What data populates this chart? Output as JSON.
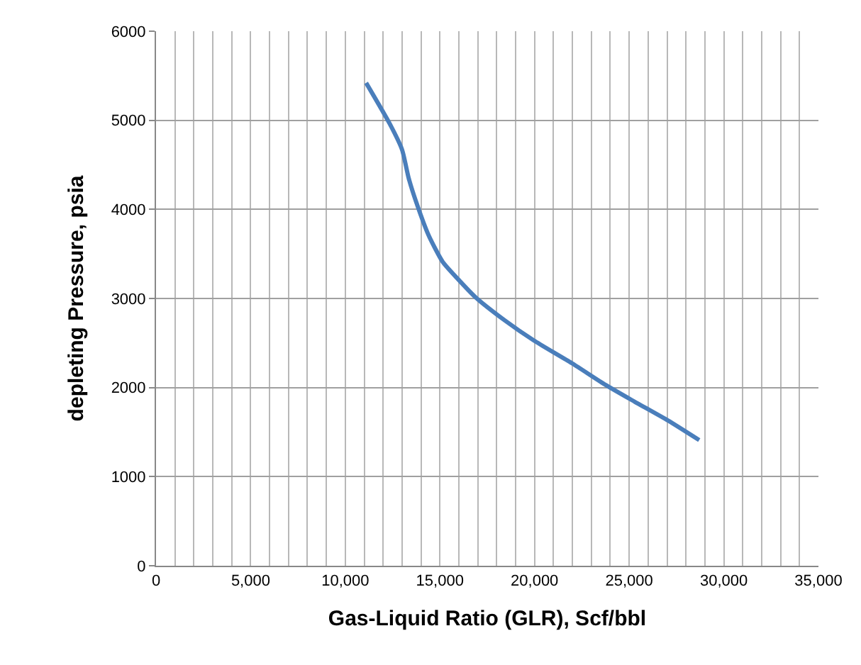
{
  "chart_data": {
    "type": "line",
    "xlabel": "Gas-Liquid Ratio (GLR), Scf/bbl",
    "ylabel": "depleting Pressure, psia",
    "series": [
      {
        "color": "#4a7ebb",
        "x": [
          11100,
          12350,
          13000,
          13350,
          13750,
          14400,
          15150,
          15900,
          16900,
          18450,
          19950,
          22000,
          23750,
          25300,
          27050,
          28700
        ],
        "values": [
          5420,
          4960,
          4670,
          4350,
          4080,
          3710,
          3410,
          3230,
          3010,
          2750,
          2530,
          2270,
          2030,
          1840,
          1630,
          1410
        ]
      }
    ],
    "xlim": [
      0,
      35000
    ],
    "ylim": [
      0,
      6000
    ],
    "xticks": [
      {
        "value": 0,
        "label": "0"
      },
      {
        "value": 1000,
        "label": null
      },
      {
        "value": 2000,
        "label": null
      },
      {
        "value": 3000,
        "label": null
      },
      {
        "value": 4000,
        "label": null
      },
      {
        "value": 5000,
        "label": "5,000"
      },
      {
        "value": 6000,
        "label": null
      },
      {
        "value": 7000,
        "label": null
      },
      {
        "value": 8000,
        "label": null
      },
      {
        "value": 9000,
        "label": null
      },
      {
        "value": 10000,
        "label": "10,000"
      },
      {
        "value": 11000,
        "label": null
      },
      {
        "value": 12000,
        "label": null
      },
      {
        "value": 13000,
        "label": null
      },
      {
        "value": 14000,
        "label": null
      },
      {
        "value": 15000,
        "label": "15,000"
      },
      {
        "value": 16000,
        "label": null
      },
      {
        "value": 17000,
        "label": null
      },
      {
        "value": 18000,
        "label": null
      },
      {
        "value": 19000,
        "label": null
      },
      {
        "value": 20000,
        "label": "20,000"
      },
      {
        "value": 21000,
        "label": null
      },
      {
        "value": 22000,
        "label": null
      },
      {
        "value": 23000,
        "label": null
      },
      {
        "value": 24000,
        "label": null
      },
      {
        "value": 25000,
        "label": "25,000"
      },
      {
        "value": 26000,
        "label": null
      },
      {
        "value": 27000,
        "label": null
      },
      {
        "value": 28000,
        "label": null
      },
      {
        "value": 29000,
        "label": null
      },
      {
        "value": 30000,
        "label": "30,000"
      },
      {
        "value": 31000,
        "label": null
      },
      {
        "value": 32000,
        "label": null
      },
      {
        "value": 33000,
        "label": null
      },
      {
        "value": 34000,
        "label": null
      },
      {
        "value": 35000,
        "label": "35,000"
      }
    ],
    "yticks": [
      0,
      1000,
      2000,
      3000,
      4000,
      5000,
      6000
    ],
    "grid": true,
    "marker": "none",
    "line_style": "solid"
  }
}
